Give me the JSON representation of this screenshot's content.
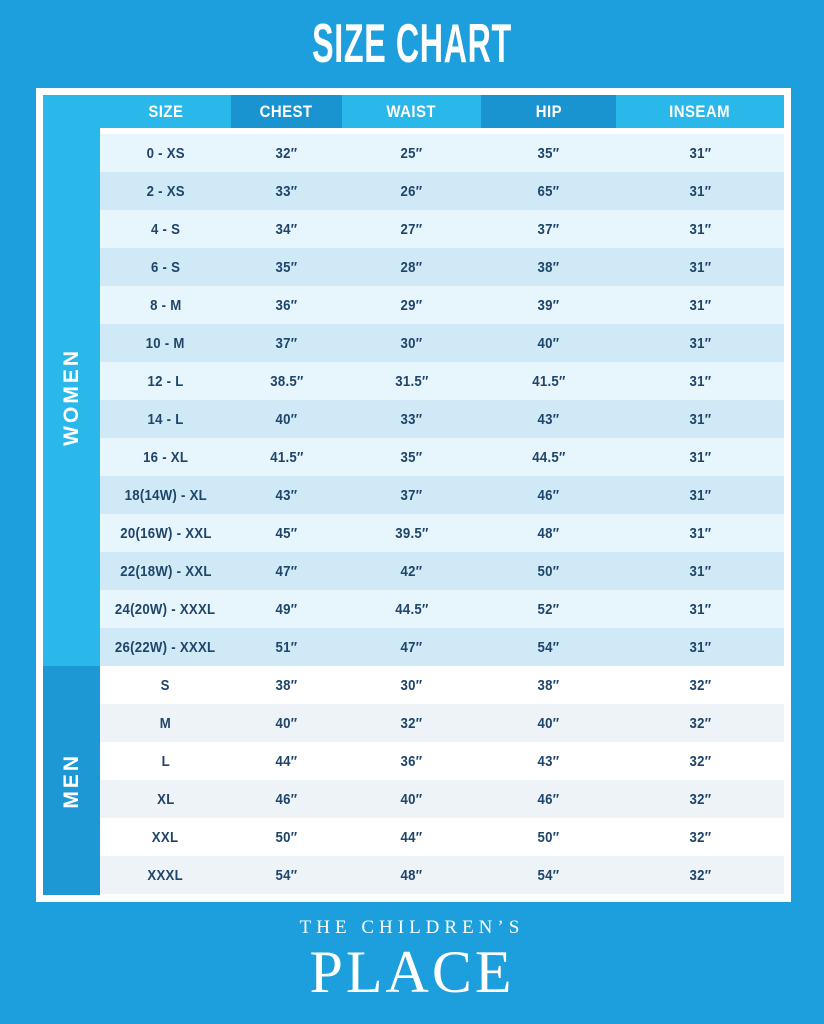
{
  "title": "SIZE CHART",
  "brand": {
    "line1": "THE CHILDREN’S",
    "line2": "PLACE"
  },
  "colors": {
    "background": "#1C9FDC",
    "light_cyan": "#2AB7EA",
    "dark_cyan": "#1A93D1",
    "men_sidebar": "#1E98D5",
    "row_light": "#E7F5FC",
    "row_alt": "#CFEAF6",
    "men_row_light": "#FFFFFF",
    "men_row_alt": "#EDF3F7",
    "text_navy": "#20456A"
  },
  "chart_data": {
    "type": "table",
    "title": "SIZE CHART",
    "columns": [
      "SIZE",
      "CHEST",
      "WAIST",
      "HIP",
      "INSEAM"
    ],
    "sections": [
      {
        "label": "WOMEN",
        "rows": [
          [
            "0 - XS",
            "32″",
            "25″",
            "35″",
            "31″"
          ],
          [
            "2 - XS",
            "33″",
            "26″",
            "65″",
            "31″"
          ],
          [
            "4 - S",
            "34″",
            "27″",
            "37″",
            "31″"
          ],
          [
            "6 - S",
            "35″",
            "28″",
            "38″",
            "31″"
          ],
          [
            "8 - M",
            "36″",
            "29″",
            "39″",
            "31″"
          ],
          [
            "10 - M",
            "37″",
            "30″",
            "40″",
            "31″"
          ],
          [
            "12 - L",
            "38.5″",
            "31.5″",
            "41.5″",
            "31″"
          ],
          [
            "14 - L",
            "40″",
            "33″",
            "43″",
            "31″"
          ],
          [
            "16 - XL",
            "41.5″",
            "35″",
            "44.5″",
            "31″"
          ],
          [
            "18(14W) - XL",
            "43″",
            "37″",
            "46″",
            "31″"
          ],
          [
            "20(16W) - XXL",
            "45″",
            "39.5″",
            "48″",
            "31″"
          ],
          [
            "22(18W) - XXL",
            "47″",
            "42″",
            "50″",
            "31″"
          ],
          [
            "24(20W) - XXXL",
            "49″",
            "44.5″",
            "52″",
            "31″"
          ],
          [
            "26(22W) - XXXL",
            "51″",
            "47″",
            "54″",
            "31″"
          ]
        ]
      },
      {
        "label": "MEN",
        "rows": [
          [
            "S",
            "38″",
            "30″",
            "38″",
            "32″"
          ],
          [
            "M",
            "40″",
            "32″",
            "40″",
            "32″"
          ],
          [
            "L",
            "44″",
            "36″",
            "43″",
            "32″"
          ],
          [
            "XL",
            "46″",
            "40″",
            "46″",
            "32″"
          ],
          [
            "XXL",
            "50″",
            "44″",
            "50″",
            "32″"
          ],
          [
            "XXXL",
            "54″",
            "48″",
            "54″",
            "32″"
          ]
        ]
      }
    ]
  }
}
